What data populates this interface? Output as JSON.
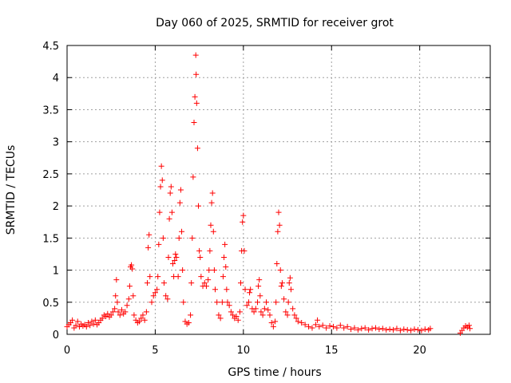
{
  "chart_data": {
    "type": "scatter",
    "title": "Day 060 of 2025, SRMTID for receiver grot",
    "xlabel": "GPS time / hours",
    "ylabel": "SRMTID / TECUs",
    "xlim": [
      0,
      24
    ],
    "ylim": [
      0,
      4.5
    ],
    "x_ticks": [
      0,
      5,
      10,
      15,
      20
    ],
    "x_tick_labels": [
      "0",
      "5",
      "10",
      "15",
      "20"
    ],
    "y_ticks": [
      0,
      0.5,
      1,
      1.5,
      2,
      2.5,
      3,
      3.5,
      4,
      4.5
    ],
    "y_tick_labels": [
      "0",
      "0.5",
      "1",
      "1.5",
      "2",
      "2.5",
      "3",
      "3.5",
      "4",
      "4.5"
    ],
    "grid": true,
    "marker": "plus",
    "marker_color": "#ff0000",
    "series": [
      {
        "name": "SRMTID",
        "points": [
          [
            0.0,
            0.12
          ],
          [
            0.1,
            0.15
          ],
          [
            0.2,
            0.18
          ],
          [
            0.3,
            0.22
          ],
          [
            0.4,
            0.1
          ],
          [
            0.5,
            0.14
          ],
          [
            0.6,
            0.2
          ],
          [
            0.7,
            0.12
          ],
          [
            0.8,
            0.16
          ],
          [
            0.9,
            0.13
          ],
          [
            1.0,
            0.15
          ],
          [
            1.1,
            0.12
          ],
          [
            1.2,
            0.18
          ],
          [
            1.3,
            0.14
          ],
          [
            1.4,
            0.2
          ],
          [
            1.5,
            0.16
          ],
          [
            1.6,
            0.22
          ],
          [
            1.7,
            0.15
          ],
          [
            1.8,
            0.18
          ],
          [
            1.9,
            0.22
          ],
          [
            2.0,
            0.25
          ],
          [
            2.1,
            0.3
          ],
          [
            2.2,
            0.28
          ],
          [
            2.3,
            0.32
          ],
          [
            2.4,
            0.27
          ],
          [
            2.5,
            0.3
          ],
          [
            2.6,
            0.35
          ],
          [
            2.7,
            0.4
          ],
          [
            2.75,
            0.6
          ],
          [
            2.8,
            0.85
          ],
          [
            2.85,
            0.5
          ],
          [
            2.9,
            0.35
          ],
          [
            3.0,
            0.3
          ],
          [
            3.1,
            0.38
          ],
          [
            3.2,
            0.32
          ],
          [
            3.3,
            0.35
          ],
          [
            3.4,
            0.45
          ],
          [
            3.5,
            0.55
          ],
          [
            3.55,
            0.75
          ],
          [
            3.6,
            1.05
          ],
          [
            3.65,
            1.08
          ],
          [
            3.7,
            1.02
          ],
          [
            3.75,
            0.6
          ],
          [
            3.8,
            0.3
          ],
          [
            3.9,
            0.22
          ],
          [
            4.0,
            0.18
          ],
          [
            4.1,
            0.2
          ],
          [
            4.2,
            0.25
          ],
          [
            4.3,
            0.3
          ],
          [
            4.4,
            0.22
          ],
          [
            4.5,
            0.35
          ],
          [
            4.55,
            0.8
          ],
          [
            4.6,
            1.35
          ],
          [
            4.65,
            1.55
          ],
          [
            4.7,
            0.9
          ],
          [
            4.8,
            0.5
          ],
          [
            4.9,
            0.6
          ],
          [
            5.0,
            0.65
          ],
          [
            5.1,
            0.7
          ],
          [
            5.15,
            0.9
          ],
          [
            5.2,
            1.4
          ],
          [
            5.25,
            1.9
          ],
          [
            5.3,
            2.3
          ],
          [
            5.35,
            2.62
          ],
          [
            5.4,
            2.4
          ],
          [
            5.45,
            1.5
          ],
          [
            5.5,
            0.8
          ],
          [
            5.6,
            0.6
          ],
          [
            5.7,
            0.55
          ],
          [
            5.75,
            1.2
          ],
          [
            5.8,
            1.8
          ],
          [
            5.85,
            2.2
          ],
          [
            5.9,
            2.3
          ],
          [
            5.95,
            1.9
          ],
          [
            6.0,
            1.1
          ],
          [
            6.05,
            0.9
          ],
          [
            6.1,
            1.15
          ],
          [
            6.15,
            1.25
          ],
          [
            6.2,
            1.2
          ],
          [
            6.3,
            0.9
          ],
          [
            6.35,
            1.5
          ],
          [
            6.4,
            2.05
          ],
          [
            6.45,
            2.25
          ],
          [
            6.5,
            1.6
          ],
          [
            6.55,
            1.0
          ],
          [
            6.6,
            0.5
          ],
          [
            6.7,
            0.2
          ],
          [
            6.8,
            0.16
          ],
          [
            6.9,
            0.18
          ],
          [
            7.0,
            0.3
          ],
          [
            7.05,
            0.8
          ],
          [
            7.1,
            1.5
          ],
          [
            7.15,
            2.45
          ],
          [
            7.2,
            3.3
          ],
          [
            7.25,
            3.7
          ],
          [
            7.3,
            4.35
          ],
          [
            7.32,
            4.05
          ],
          [
            7.35,
            3.6
          ],
          [
            7.4,
            2.9
          ],
          [
            7.45,
            2.0
          ],
          [
            7.5,
            1.3
          ],
          [
            7.55,
            1.2
          ],
          [
            7.6,
            0.9
          ],
          [
            7.7,
            0.75
          ],
          [
            7.8,
            0.8
          ],
          [
            7.9,
            0.75
          ],
          [
            8.0,
            0.85
          ],
          [
            8.05,
            1.0
          ],
          [
            8.1,
            1.3
          ],
          [
            8.15,
            1.7
          ],
          [
            8.2,
            2.05
          ],
          [
            8.25,
            2.2
          ],
          [
            8.3,
            1.6
          ],
          [
            8.35,
            1.0
          ],
          [
            8.4,
            0.7
          ],
          [
            8.5,
            0.5
          ],
          [
            8.6,
            0.3
          ],
          [
            8.7,
            0.25
          ],
          [
            8.8,
            0.5
          ],
          [
            8.85,
            0.9
          ],
          [
            8.9,
            1.2
          ],
          [
            8.95,
            1.4
          ],
          [
            9.0,
            1.05
          ],
          [
            9.05,
            0.7
          ],
          [
            9.1,
            0.5
          ],
          [
            9.2,
            0.45
          ],
          [
            9.3,
            0.35
          ],
          [
            9.4,
            0.3
          ],
          [
            9.5,
            0.25
          ],
          [
            9.6,
            0.28
          ],
          [
            9.7,
            0.22
          ],
          [
            9.8,
            0.35
          ],
          [
            9.85,
            0.8
          ],
          [
            9.9,
            1.3
          ],
          [
            9.95,
            1.75
          ],
          [
            10.0,
            1.85
          ],
          [
            10.05,
            1.3
          ],
          [
            10.1,
            0.7
          ],
          [
            10.2,
            0.45
          ],
          [
            10.3,
            0.5
          ],
          [
            10.35,
            0.65
          ],
          [
            10.4,
            0.7
          ],
          [
            10.5,
            0.4
          ],
          [
            10.6,
            0.35
          ],
          [
            10.7,
            0.4
          ],
          [
            10.8,
            0.5
          ],
          [
            10.85,
            0.75
          ],
          [
            10.9,
            0.85
          ],
          [
            10.95,
            0.6
          ],
          [
            11.0,
            0.35
          ],
          [
            11.1,
            0.3
          ],
          [
            11.2,
            0.4
          ],
          [
            11.3,
            0.5
          ],
          [
            11.4,
            0.38
          ],
          [
            11.5,
            0.3
          ],
          [
            11.6,
            0.18
          ],
          [
            11.7,
            0.12
          ],
          [
            11.8,
            0.2
          ],
          [
            11.85,
            0.5
          ],
          [
            11.9,
            1.1
          ],
          [
            11.95,
            1.6
          ],
          [
            12.0,
            1.9
          ],
          [
            12.05,
            1.7
          ],
          [
            12.1,
            1.0
          ],
          [
            12.15,
            0.75
          ],
          [
            12.2,
            0.8
          ],
          [
            12.3,
            0.55
          ],
          [
            12.4,
            0.35
          ],
          [
            12.5,
            0.3
          ],
          [
            12.55,
            0.5
          ],
          [
            12.6,
            0.8
          ],
          [
            12.65,
            0.88
          ],
          [
            12.7,
            0.7
          ],
          [
            12.8,
            0.4
          ],
          [
            12.9,
            0.3
          ],
          [
            13.0,
            0.25
          ],
          [
            13.1,
            0.2
          ],
          [
            13.3,
            0.18
          ],
          [
            13.5,
            0.15
          ],
          [
            13.7,
            0.12
          ],
          [
            13.9,
            0.1
          ],
          [
            14.1,
            0.15
          ],
          [
            14.2,
            0.22
          ],
          [
            14.3,
            0.12
          ],
          [
            14.5,
            0.14
          ],
          [
            14.7,
            0.1
          ],
          [
            14.9,
            0.13
          ],
          [
            15.1,
            0.12
          ],
          [
            15.3,
            0.1
          ],
          [
            15.5,
            0.14
          ],
          [
            15.7,
            0.1
          ],
          [
            15.9,
            0.12
          ],
          [
            16.1,
            0.08
          ],
          [
            16.3,
            0.1
          ],
          [
            16.5,
            0.07
          ],
          [
            16.7,
            0.09
          ],
          [
            16.9,
            0.1
          ],
          [
            17.1,
            0.07
          ],
          [
            17.3,
            0.09
          ],
          [
            17.5,
            0.1
          ],
          [
            17.7,
            0.08
          ],
          [
            17.9,
            0.09
          ],
          [
            18.1,
            0.07
          ],
          [
            18.3,
            0.08
          ],
          [
            18.5,
            0.07
          ],
          [
            18.7,
            0.09
          ],
          [
            18.9,
            0.06
          ],
          [
            19.1,
            0.08
          ],
          [
            19.3,
            0.07
          ],
          [
            19.5,
            0.06
          ],
          [
            19.7,
            0.08
          ],
          [
            19.9,
            0.07
          ],
          [
            20.1,
            0.06
          ],
          [
            20.3,
            0.08
          ],
          [
            20.5,
            0.07
          ],
          [
            20.6,
            0.09
          ],
          [
            22.3,
            0.02
          ],
          [
            22.4,
            0.06
          ],
          [
            22.5,
            0.1
          ],
          [
            22.6,
            0.13
          ],
          [
            22.7,
            0.11
          ],
          [
            22.8,
            0.14
          ],
          [
            22.85,
            0.09
          ]
        ]
      }
    ]
  }
}
